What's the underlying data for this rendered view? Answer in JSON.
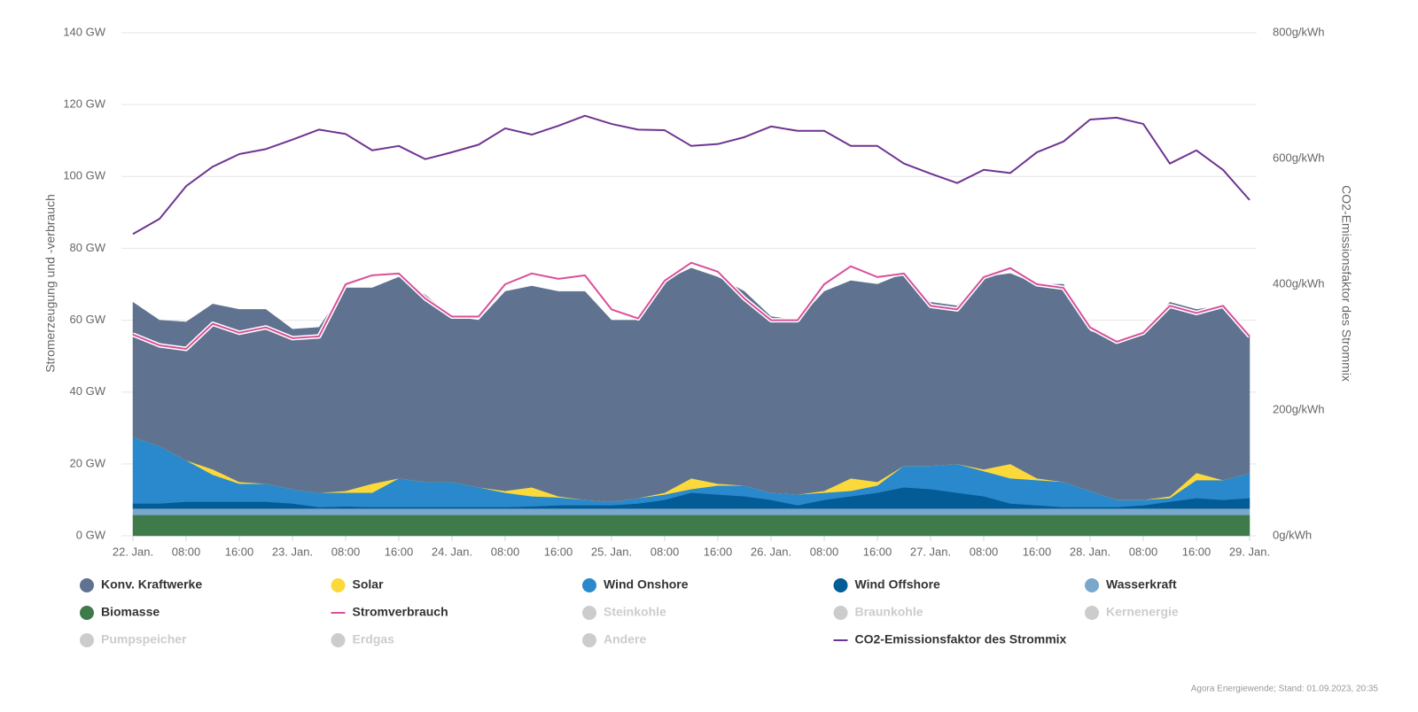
{
  "chart_data": {
    "type": "area",
    "y_title": "Stromerzeugung und -verbrauch",
    "y2_title": "CO2-Emissionsfaktor des Strommix",
    "credit": "Agora Energiewende; Stand: 01.09.2023, 20:35",
    "grid": true,
    "x": [
      0,
      4,
      8,
      12,
      16,
      20,
      24,
      28,
      32,
      36,
      40,
      44,
      48,
      52,
      56,
      60,
      64,
      68,
      72,
      76,
      80,
      84,
      88,
      92,
      96,
      100,
      104,
      108,
      112,
      116,
      120,
      124,
      128,
      132,
      136,
      140,
      144,
      148,
      152,
      156,
      160,
      164,
      168
    ],
    "xlim": [
      0,
      168
    ],
    "xticks": [
      {
        "value": 0,
        "label": "22. Jan."
      },
      {
        "value": 8,
        "label": "08:00"
      },
      {
        "value": 16,
        "label": "16:00"
      },
      {
        "value": 24,
        "label": "23. Jan."
      },
      {
        "value": 32,
        "label": "08:00"
      },
      {
        "value": 40,
        "label": "16:00"
      },
      {
        "value": 48,
        "label": "24. Jan."
      },
      {
        "value": 56,
        "label": "08:00"
      },
      {
        "value": 64,
        "label": "16:00"
      },
      {
        "value": 72,
        "label": "25. Jan."
      },
      {
        "value": 80,
        "label": "08:00"
      },
      {
        "value": 88,
        "label": "16:00"
      },
      {
        "value": 96,
        "label": "26. Jan."
      },
      {
        "value": 104,
        "label": "08:00"
      },
      {
        "value": 112,
        "label": "16:00"
      },
      {
        "value": 120,
        "label": "27. Jan."
      },
      {
        "value": 128,
        "label": "08:00"
      },
      {
        "value": 136,
        "label": "16:00"
      },
      {
        "value": 144,
        "label": "28. Jan."
      },
      {
        "value": 152,
        "label": "08:00"
      },
      {
        "value": 160,
        "label": "16:00"
      },
      {
        "value": 168,
        "label": "29. Jan."
      }
    ],
    "ylim": [
      0,
      140
    ],
    "yticks": [
      {
        "value": 0,
        "label": "0 GW"
      },
      {
        "value": 20,
        "label": "20 GW"
      },
      {
        "value": 40,
        "label": "40 GW"
      },
      {
        "value": 60,
        "label": "60 GW"
      },
      {
        "value": 80,
        "label": "80 GW"
      },
      {
        "value": 100,
        "label": "100 GW"
      },
      {
        "value": 120,
        "label": "120 GW"
      },
      {
        "value": 140,
        "label": "140 GW"
      }
    ],
    "y2lim": [
      0,
      800
    ],
    "y2ticks": [
      {
        "value": 0,
        "label": "0g/kWh"
      },
      {
        "value": 200,
        "label": "200g/kWh"
      },
      {
        "value": 400,
        "label": "400g/kWh"
      },
      {
        "value": 600,
        "label": "600g/kWh"
      },
      {
        "value": 800,
        "label": "800g/kWh"
      }
    ],
    "series": [
      {
        "name": "Konv. Kraftwerke",
        "type": "area",
        "color": "#5f7290",
        "values": [
          37.5,
          35,
          38.5,
          46,
          48,
          48.5,
          44.5,
          46,
          56.5,
          54.5,
          56,
          52,
          46,
          46.5,
          55.5,
          56,
          57,
          58,
          50.5,
          49.5,
          59,
          58.5,
          57.5,
          54,
          49,
          48.5,
          55.5,
          55,
          55,
          53.5,
          45.5,
          44,
          53.5,
          53,
          54,
          55,
          44.5,
          44.5,
          46,
          54,
          45.5,
          48.5,
          38.5
        ]
      },
      {
        "name": "Solar",
        "type": "area",
        "color": "#fcd93a",
        "values": [
          0,
          0,
          0,
          1.5,
          0.5,
          0,
          0,
          0,
          0.5,
          2.5,
          0,
          0,
          0,
          0,
          0.5,
          2.5,
          0.3,
          0,
          0,
          0,
          0.5,
          3,
          0.5,
          0,
          0,
          0,
          0.5,
          3.5,
          1,
          0,
          0,
          0,
          0.5,
          4,
          0.5,
          0,
          0,
          0,
          0,
          0.5,
          2,
          0,
          0
        ]
      },
      {
        "name": "Wind Onshore",
        "type": "area",
        "color": "#2a88cc",
        "values": [
          18.5,
          16,
          11.5,
          7.5,
          5,
          5,
          4,
          4,
          3.8,
          4,
          8,
          7,
          7,
          5.5,
          4,
          2.8,
          2.2,
          1.5,
          1,
          1.5,
          1.5,
          1,
          2.5,
          3,
          2,
          3,
          2,
          1.5,
          2,
          6,
          6.5,
          8,
          7,
          7,
          7,
          7,
          4.5,
          2,
          1.5,
          1,
          5,
          5.5,
          7
        ]
      },
      {
        "name": "Wind Offshore",
        "type": "area",
        "color": "#035c96",
        "values": [
          1.4,
          1.4,
          1.9,
          1.9,
          1.9,
          1.9,
          1.4,
          0.4,
          0.6,
          0.4,
          0.4,
          0.4,
          0.4,
          0.4,
          0.4,
          0.6,
          0.9,
          0.9,
          0.9,
          1.4,
          2.4,
          4.4,
          3.9,
          3.4,
          2.4,
          0.9,
          2.4,
          3.4,
          4.4,
          5.9,
          5.4,
          4.4,
          3.4,
          1.4,
          0.9,
          0.4,
          0.4,
          0.4,
          0.9,
          1.9,
          2.9,
          2.4,
          2.9
        ]
      },
      {
        "name": "Wasserkraft",
        "type": "area",
        "color": "#7aa8cc",
        "values": [
          1.8,
          1.8,
          1.8,
          1.8,
          1.8,
          1.8,
          1.8,
          1.8,
          1.8,
          1.8,
          1.8,
          1.8,
          1.8,
          1.8,
          1.8,
          1.8,
          1.8,
          1.8,
          1.8,
          1.8,
          1.8,
          1.8,
          1.8,
          1.8,
          1.8,
          1.8,
          1.8,
          1.8,
          1.8,
          1.8,
          1.8,
          1.8,
          1.8,
          1.8,
          1.8,
          1.8,
          1.8,
          1.8,
          1.8,
          1.8,
          1.8,
          1.8,
          1.8
        ]
      },
      {
        "name": "Biomasse",
        "type": "area",
        "color": "#3f7a4a",
        "values": [
          5.8,
          5.8,
          5.8,
          5.8,
          5.8,
          5.8,
          5.8,
          5.8,
          5.8,
          5.8,
          5.8,
          5.8,
          5.8,
          5.8,
          5.8,
          5.8,
          5.8,
          5.8,
          5.8,
          5.8,
          5.8,
          5.8,
          5.8,
          5.8,
          5.8,
          5.8,
          5.8,
          5.8,
          5.8,
          5.8,
          5.8,
          5.8,
          5.8,
          5.8,
          5.8,
          5.8,
          5.8,
          5.8,
          5.8,
          5.8,
          5.8,
          5.8,
          5.8
        ]
      },
      {
        "name": "Stromverbrauch",
        "type": "line",
        "color": "#d9509a",
        "values": [
          56,
          53,
          52,
          59,
          56.5,
          58,
          55,
          55.5,
          70,
          72.5,
          73,
          66,
          61,
          61,
          70,
          73,
          71.5,
          72.5,
          63,
          60.5,
          71,
          76,
          73.5,
          66,
          60,
          60,
          70,
          75,
          72,
          73,
          64,
          63,
          72,
          74.5,
          70,
          69,
          58,
          54,
          56.5,
          64,
          62,
          64,
          55.5
        ]
      },
      {
        "name": "Steinkohle",
        "color": "#cccccc",
        "visible": false
      },
      {
        "name": "Braunkohle",
        "color": "#cccccc",
        "visible": false
      },
      {
        "name": "Kernenergie",
        "color": "#cccccc",
        "visible": false
      },
      {
        "name": "Pumpspeicher",
        "color": "#cccccc",
        "visible": false
      },
      {
        "name": "Erdgas",
        "color": "#cccccc",
        "visible": false
      },
      {
        "name": "Andere",
        "color": "#cccccc",
        "visible": false
      },
      {
        "name": "CO2-Emissionsfaktor des Strommix",
        "type": "line",
        "axis": "y2",
        "color": "#6f3491",
        "values": [
          480,
          504,
          556,
          587,
          607,
          615,
          630,
          646,
          639,
          613,
          620,
          599,
          610,
          622,
          648,
          638,
          652,
          668,
          655,
          646,
          645,
          620,
          623,
          634,
          651,
          644,
          644,
          620,
          620,
          592,
          576,
          561,
          582,
          577,
          610,
          627,
          662,
          665,
          655,
          592,
          613,
          582,
          534
        ]
      }
    ]
  }
}
